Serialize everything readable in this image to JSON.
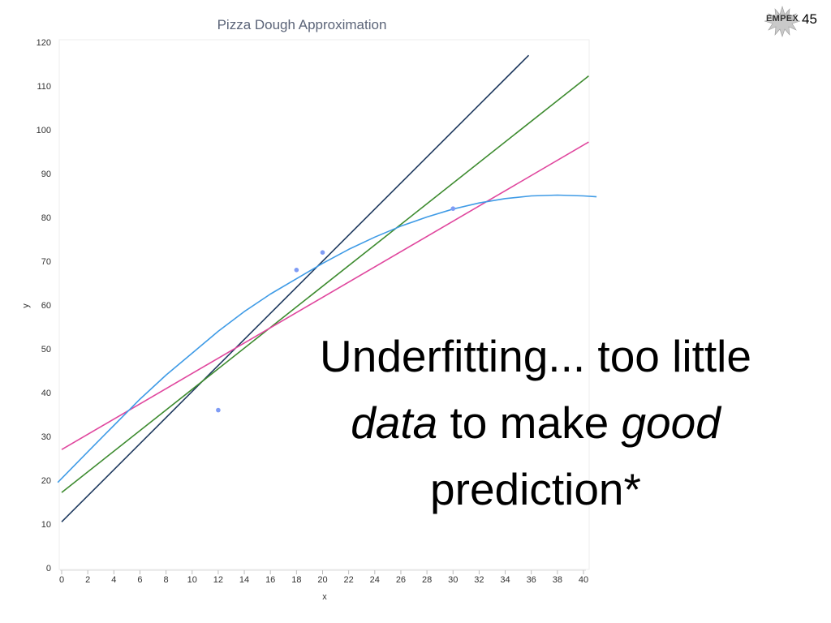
{
  "slide": {
    "logo_text": "EMPEX",
    "slide_number": "45",
    "caption": {
      "line1": "Underfitting... too little",
      "line2_em1": "data",
      "line2_mid": " to make ",
      "line2_em2": "good",
      "line3": "prediction*"
    }
  },
  "chart_data": {
    "type": "scatter",
    "title": "Pizza Dough Approximation",
    "xlabel": "x",
    "ylabel": "y",
    "xlim": [
      0,
      40
    ],
    "ylim": [
      0,
      120
    ],
    "xticks": [
      0,
      2,
      4,
      6,
      8,
      10,
      12,
      14,
      16,
      18,
      20,
      22,
      24,
      26,
      28,
      30,
      32,
      34,
      36,
      38,
      40
    ],
    "yticks": [
      0,
      10,
      20,
      30,
      40,
      50,
      60,
      70,
      80,
      90,
      100,
      110,
      120
    ],
    "grid": false,
    "points": [
      {
        "x": 12,
        "y": 36
      },
      {
        "x": 18,
        "y": 68
      },
      {
        "x": 20,
        "y": 72
      },
      {
        "x": 30,
        "y": 82
      }
    ],
    "point_color": "#7f9cf5",
    "fits": [
      {
        "kind": "line",
        "color": "#1f3a5f",
        "x": [
          0,
          35.8
        ],
        "y": [
          10.5,
          117
        ]
      },
      {
        "kind": "line",
        "color": "#3d8b2f",
        "x": [
          0,
          40.4
        ],
        "y": [
          17.2,
          112.3
        ]
      },
      {
        "kind": "line",
        "color": "#e0479e",
        "x": [
          0,
          40.4
        ],
        "y": [
          27,
          97.2
        ]
      },
      {
        "kind": "curve",
        "color": "#3f9be6",
        "x": [
          -0.3,
          2,
          4,
          6,
          8,
          10,
          12,
          14,
          16,
          18,
          20,
          22,
          24,
          26,
          28,
          30,
          32,
          34,
          36,
          38,
          40,
          41
        ],
        "y": [
          19.5,
          26.5,
          32.5,
          38.5,
          44,
          49,
          54,
          58.5,
          62.5,
          66,
          69.5,
          72.7,
          75.5,
          78,
          80.1,
          81.9,
          83.3,
          84.3,
          84.9,
          85.1,
          84.9,
          84.7
        ]
      }
    ]
  }
}
